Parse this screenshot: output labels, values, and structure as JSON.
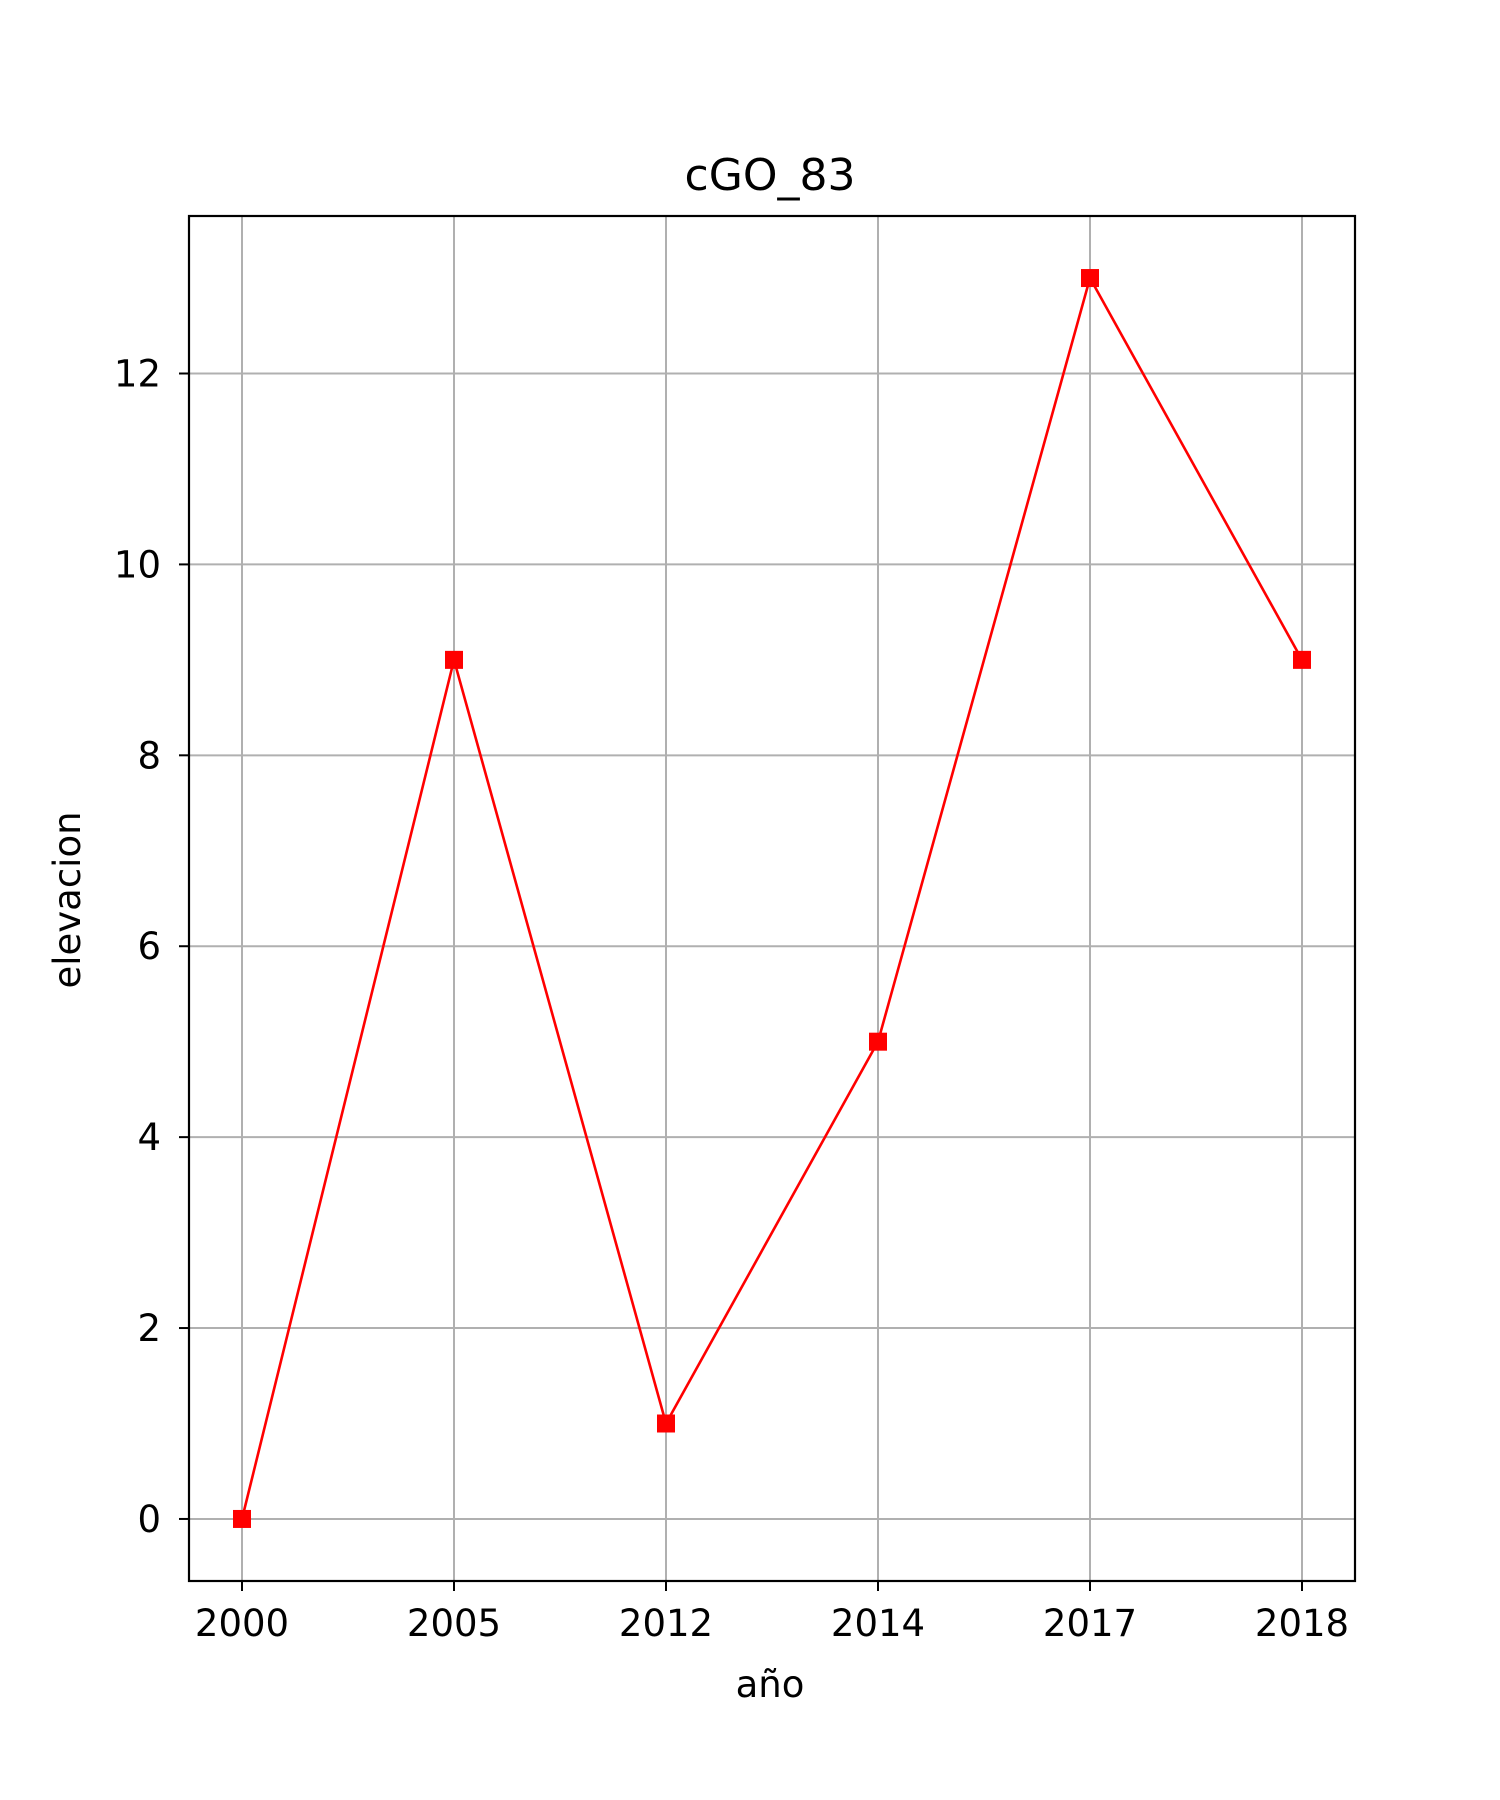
{
  "chart_data": {
    "type": "line",
    "title": "cGO_83",
    "xlabel": "año",
    "ylabel": "elevacion",
    "categories": [
      "2000",
      "2005",
      "2012",
      "2014",
      "2017",
      "2018"
    ],
    "series": [
      {
        "values": [
          0,
          9,
          1,
          5,
          13,
          9
        ],
        "color": "#ff0000",
        "marker": "square"
      }
    ],
    "ylim": [
      -0.65,
      13.65
    ],
    "yticks": [
      0,
      2,
      4,
      6,
      8,
      10,
      12
    ],
    "grid": true,
    "colors": {
      "line": "#ff0000",
      "grid": "#b0b0b0",
      "axes": "#000000"
    }
  }
}
